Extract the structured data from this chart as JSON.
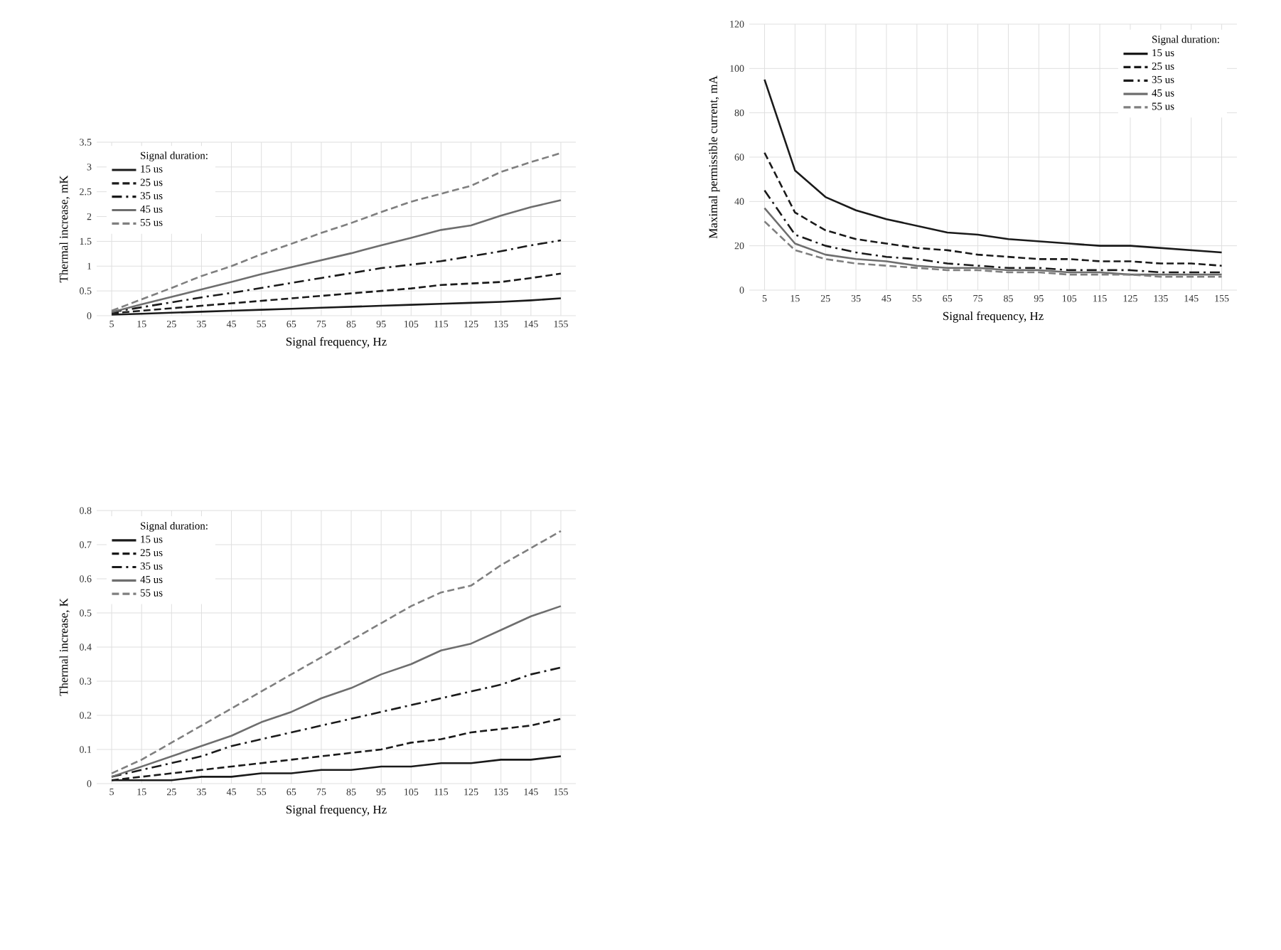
{
  "chart_data": [
    {
      "type": "line",
      "xlabel": "Signal frequency, Hz",
      "ylabel": "Thermal increase, mK",
      "legend_title": "Signal duration:",
      "legend": "top left",
      "grid": true,
      "categories": [
        "5",
        "15",
        "25",
        "35",
        "45",
        "55",
        "65",
        "75",
        "85",
        "95",
        "105",
        "115",
        "125",
        "135",
        "145",
        "155"
      ],
      "ylim": [
        0,
        3.5
      ],
      "yticks": [
        0,
        0.5,
        1,
        1.5,
        2,
        2.5,
        3,
        3.5
      ],
      "series": [
        {
          "name": "15 us",
          "color": "#1a1a1a",
          "line_style": "solid",
          "values": [
            0.02,
            0.04,
            0.06,
            0.08,
            0.1,
            0.12,
            0.14,
            0.16,
            0.18,
            0.2,
            0.22,
            0.24,
            0.26,
            0.28,
            0.31,
            0.35
          ]
        },
        {
          "name": "25 us",
          "color": "#1a1a1a",
          "line_style": "dashed",
          "values": [
            0.05,
            0.1,
            0.15,
            0.2,
            0.25,
            0.3,
            0.35,
            0.4,
            0.45,
            0.5,
            0.55,
            0.62,
            0.65,
            0.68,
            0.76,
            0.85
          ]
        },
        {
          "name": "35 us",
          "color": "#1a1a1a",
          "line_style": "dashdot",
          "values": [
            0.07,
            0.17,
            0.27,
            0.37,
            0.46,
            0.56,
            0.66,
            0.76,
            0.86,
            0.96,
            1.03,
            1.1,
            1.2,
            1.3,
            1.42,
            1.52
          ]
        },
        {
          "name": "45 us",
          "color": "#6e6e6e",
          "line_style": "solid",
          "values": [
            0.07,
            0.23,
            0.38,
            0.53,
            0.68,
            0.84,
            0.98,
            1.12,
            1.26,
            1.42,
            1.57,
            1.73,
            1.82,
            2.02,
            2.19,
            2.33
          ]
        },
        {
          "name": "55 us",
          "color": "#7f7f7f",
          "line_style": "dashed",
          "values": [
            0.1,
            0.33,
            0.56,
            0.8,
            1.0,
            1.24,
            1.45,
            1.67,
            1.87,
            2.09,
            2.3,
            2.46,
            2.62,
            2.9,
            3.1,
            3.28
          ]
        }
      ]
    },
    {
      "type": "line",
      "xlabel": "Signal frequency, Hz",
      "ylabel": "Maximal permissible current, mA",
      "legend_title": "Signal duration:",
      "legend": "top right",
      "grid": true,
      "categories": [
        "5",
        "15",
        "25",
        "35",
        "45",
        "55",
        "65",
        "75",
        "85",
        "95",
        "105",
        "115",
        "125",
        "135",
        "145",
        "155"
      ],
      "ylim": [
        0,
        120
      ],
      "yticks": [
        0,
        20,
        40,
        60,
        80,
        100,
        120
      ],
      "series": [
        {
          "name": "15 us",
          "color": "#1a1a1a",
          "line_style": "solid",
          "values": [
            95,
            54,
            42,
            36,
            32,
            29,
            26,
            25,
            23,
            22,
            21,
            20,
            20,
            19,
            18,
            17
          ]
        },
        {
          "name": "25 us",
          "color": "#1a1a1a",
          "line_style": "dashed",
          "values": [
            62,
            35,
            27,
            23,
            21,
            19,
            18,
            16,
            15,
            14,
            14,
            13,
            13,
            12,
            12,
            11
          ]
        },
        {
          "name": "35 us",
          "color": "#1a1a1a",
          "line_style": "dashdot",
          "values": [
            45,
            25,
            20,
            17,
            15,
            14,
            12,
            11,
            10,
            10,
            9,
            9,
            9,
            8,
            8,
            8
          ]
        },
        {
          "name": "45 us",
          "color": "#6e6e6e",
          "line_style": "solid",
          "values": [
            37,
            21,
            16,
            14,
            13,
            11,
            10,
            10,
            9,
            9,
            8,
            8,
            7,
            7,
            7,
            7
          ]
        },
        {
          "name": "55 us",
          "color": "#7f7f7f",
          "line_style": "dashed",
          "values": [
            31,
            18,
            14,
            12,
            11,
            10,
            9,
            9,
            8,
            8,
            7,
            7,
            7,
            6,
            6,
            6
          ]
        }
      ]
    },
    {
      "type": "line",
      "xlabel": "Signal frequency, Hz",
      "ylabel": "Thermal increase, K",
      "legend_title": "Signal duration:",
      "legend": "top left",
      "grid": true,
      "categories": [
        "5",
        "15",
        "25",
        "35",
        "45",
        "55",
        "65",
        "75",
        "85",
        "95",
        "105",
        "115",
        "125",
        "135",
        "145",
        "155"
      ],
      "ylim": [
        0,
        0.8
      ],
      "yticks": [
        0,
        0.1,
        0.2,
        0.3,
        0.4,
        0.5,
        0.6,
        0.7,
        0.8
      ],
      "series": [
        {
          "name": "15 us",
          "color": "#1a1a1a",
          "line_style": "solid",
          "values": [
            0.01,
            0.01,
            0.01,
            0.02,
            0.02,
            0.03,
            0.03,
            0.04,
            0.04,
            0.05,
            0.05,
            0.06,
            0.06,
            0.07,
            0.07,
            0.08
          ]
        },
        {
          "name": "25 us",
          "color": "#1a1a1a",
          "line_style": "dashed",
          "values": [
            0.01,
            0.02,
            0.03,
            0.04,
            0.05,
            0.06,
            0.07,
            0.08,
            0.09,
            0.1,
            0.12,
            0.13,
            0.15,
            0.16,
            0.17,
            0.19
          ]
        },
        {
          "name": "35 us",
          "color": "#1a1a1a",
          "line_style": "dashdot",
          "values": [
            0.02,
            0.04,
            0.06,
            0.08,
            0.11,
            0.13,
            0.15,
            0.17,
            0.19,
            0.21,
            0.23,
            0.25,
            0.27,
            0.29,
            0.32,
            0.34
          ]
        },
        {
          "name": "45 us",
          "color": "#6e6e6e",
          "line_style": "solid",
          "values": [
            0.02,
            0.05,
            0.08,
            0.11,
            0.14,
            0.18,
            0.21,
            0.25,
            0.28,
            0.32,
            0.35,
            0.39,
            0.41,
            0.45,
            0.49,
            0.52
          ]
        },
        {
          "name": "55 us",
          "color": "#7f7f7f",
          "line_style": "dashed",
          "values": [
            0.03,
            0.07,
            0.12,
            0.17,
            0.22,
            0.27,
            0.32,
            0.37,
            0.42,
            0.47,
            0.52,
            0.56,
            0.58,
            0.64,
            0.69,
            0.74
          ]
        }
      ]
    }
  ]
}
